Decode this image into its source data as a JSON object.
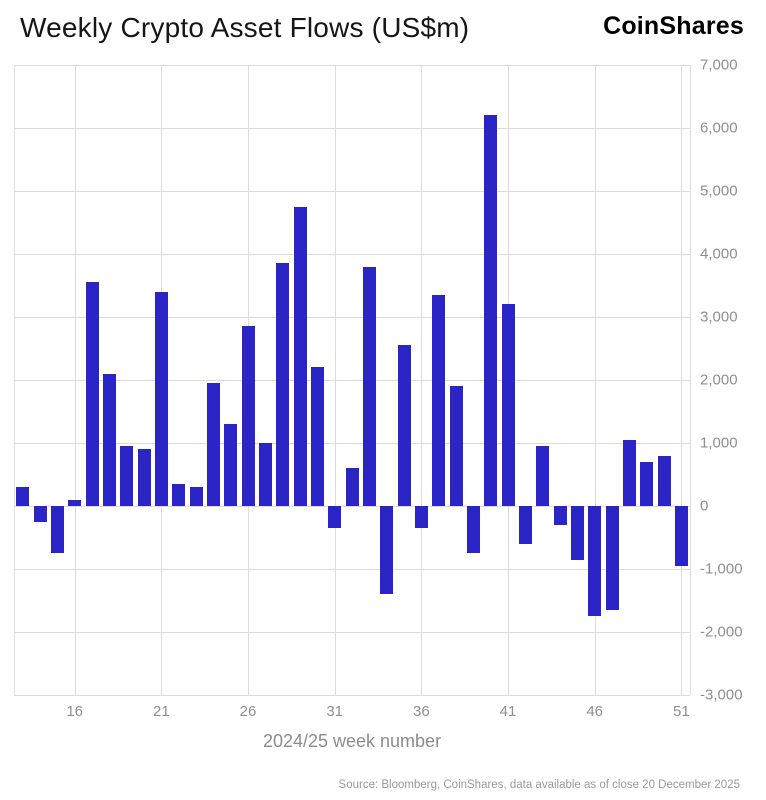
{
  "header": {
    "title": "Weekly Crypto Asset Flows (US$m)",
    "logo": "CoinShares"
  },
  "footer": {
    "source": "Source: Bloomberg, CoinShares, data available as of close 20 December 2025"
  },
  "chart_data": {
    "type": "bar",
    "title": "Weekly Crypto Asset Flows (US$m)",
    "xlabel": "2024/25 week number",
    "ylabel": "",
    "ylim": [
      -3000,
      7000
    ],
    "grid": true,
    "bar_color": "#2b25c7",
    "x_start_week": 13,
    "x": [
      13,
      14,
      15,
      16,
      17,
      18,
      19,
      20,
      21,
      22,
      23,
      24,
      25,
      26,
      27,
      28,
      29,
      30,
      31,
      32,
      33,
      34,
      35,
      36,
      37,
      38,
      39,
      40,
      41,
      42,
      43,
      44,
      45,
      46,
      47,
      48,
      49,
      50,
      51
    ],
    "values": [
      300,
      -250,
      -750,
      100,
      3550,
      2100,
      950,
      900,
      3400,
      350,
      300,
      1950,
      1300,
      2850,
      1000,
      3850,
      4750,
      2200,
      -350,
      600,
      3800,
      -1400,
      2550,
      -350,
      3350,
      1900,
      -750,
      6200,
      3200,
      -600,
      950,
      -300,
      -850,
      -1750,
      -1650,
      1050,
      700,
      800,
      -950
    ],
    "x_ticks": [
      16,
      21,
      26,
      31,
      36,
      41,
      46,
      51
    ],
    "y_ticks": [
      {
        "v": 7000,
        "label": "7,000"
      },
      {
        "v": 6000,
        "label": "6,000"
      },
      {
        "v": 5000,
        "label": "5,000"
      },
      {
        "v": 4000,
        "label": "4,000"
      },
      {
        "v": 3000,
        "label": "3,000"
      },
      {
        "v": 2000,
        "label": "2,000"
      },
      {
        "v": 1000,
        "label": "1,000"
      },
      {
        "v": 0,
        "label": "0"
      },
      {
        "v": -1000,
        "label": "-1,000"
      },
      {
        "v": -2000,
        "label": "-2,000"
      },
      {
        "v": -3000,
        "label": "-3,000"
      }
    ]
  }
}
